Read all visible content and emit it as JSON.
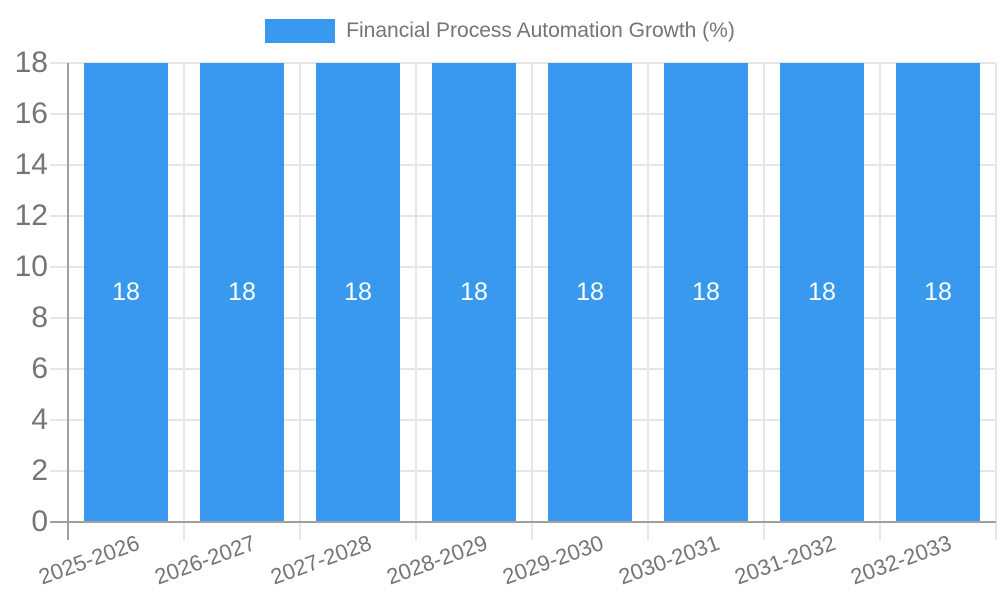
{
  "legend": {
    "label": "Financial Process Automation Growth (%)"
  },
  "colors": {
    "bar": "#3899ee",
    "bar_label": "#ffffff",
    "grid_line": "#e6e6e6",
    "axis_line": "#a0a0a0",
    "tick_text": "#757575",
    "legend_text": "#757575",
    "background": "#ffffff"
  },
  "chart_data": {
    "type": "bar",
    "title": "Financial Process Automation Growth (%)",
    "categories": [
      "2025-2026",
      "2026-2027",
      "2027-2028",
      "2028-2029",
      "2029-2030",
      "2030-2031",
      "2031-2032",
      "2032-2033"
    ],
    "values": [
      18,
      18,
      18,
      18,
      18,
      18,
      18,
      18
    ],
    "data_labels": [
      "18",
      "18",
      "18",
      "18",
      "18",
      "18",
      "18",
      "18"
    ],
    "xlabel": "",
    "ylabel": "",
    "ylim": [
      0,
      18
    ],
    "yticks": [
      0,
      2,
      4,
      6,
      8,
      10,
      12,
      14,
      16,
      18
    ],
    "grid": true,
    "legend_entries": [
      "Financial Process Automation Growth (%)"
    ],
    "legend_position": "top-center",
    "x_label_rotation_deg": -20
  }
}
